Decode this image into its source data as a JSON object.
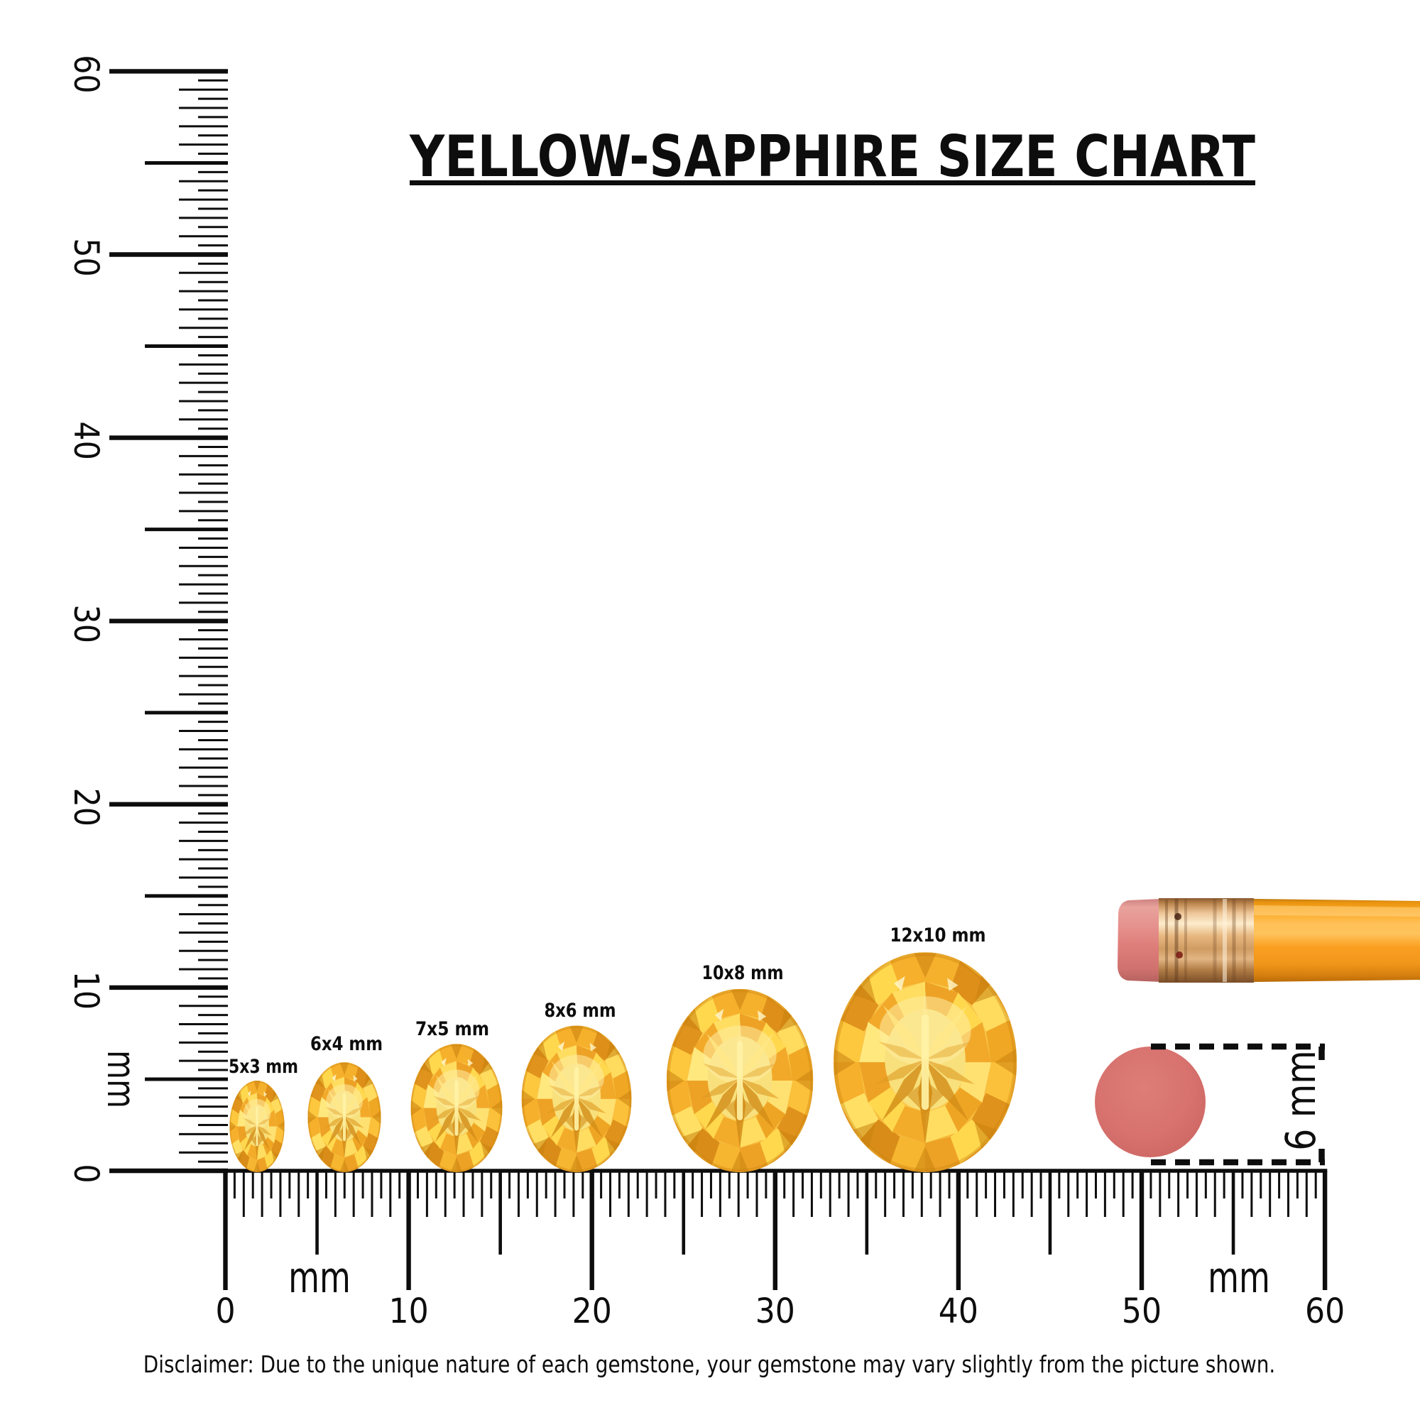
{
  "title": "YELLOW-SAPPHIRE SIZE CHART",
  "disclaimer": "Disclaimer: Due to the unique nature of each gemstone, your gemstone may vary slightly from the picture shown.",
  "ruler": {
    "unit_label": "mm",
    "horizontal": {
      "tick_labels": [
        "0",
        "10",
        "20",
        "30",
        "40",
        "50",
        "60"
      ]
    },
    "vertical": {
      "tick_labels": [
        "0",
        "10",
        "20",
        "30",
        "40",
        "50",
        "60"
      ]
    },
    "range_mm": [
      0,
      60
    ],
    "minor_step_mm": 0.5
  },
  "gems": [
    {
      "label": "5x3 mm",
      "width_mm": 3,
      "height_mm": 5
    },
    {
      "label": "6x4 mm",
      "width_mm": 4,
      "height_mm": 6
    },
    {
      "label": "7x5 mm",
      "width_mm": 5,
      "height_mm": 7
    },
    {
      "label": "8x6 mm",
      "width_mm": 6,
      "height_mm": 8
    },
    {
      "label": "10x8 mm",
      "width_mm": 8,
      "height_mm": 10
    },
    {
      "label": "12x10 mm",
      "width_mm": 10,
      "height_mm": 12
    }
  ],
  "eraser_disc": {
    "dimension_label": "6 mm",
    "diameter_mm": 6
  },
  "colors": {
    "ink": "#0d0d0d",
    "gem_palette": [
      "#ffd84e",
      "#f5b32c",
      "#dd921d",
      "#ffe483",
      "#c67f12",
      "#fdc93b",
      "#f0a626",
      "#ffefa8"
    ],
    "gem_table": "#f8e07c",
    "pencil_body": "#f99d1c",
    "pencil_ferrule": "#d8a06a",
    "pencil_eraser": "#e08680",
    "disc": "#d8716d"
  }
}
